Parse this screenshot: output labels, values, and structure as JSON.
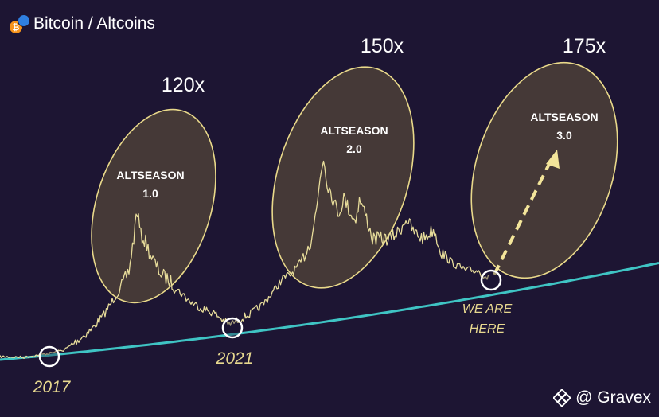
{
  "header": {
    "title": "Bitcoin / Altcoins"
  },
  "watermark": {
    "text": "@ Gravex"
  },
  "chart_data": {
    "type": "line",
    "colors": {
      "background": "#1d1533",
      "price_line": "#e7dc9a",
      "trend_line": "#3fc4c4",
      "ellipse_fill": "#4a3d37",
      "ellipse_stroke": "#e9d98a",
      "cycle_label": "#e7d88f",
      "ellipse_text": "#ffffff",
      "multiplier_text": "#ffffff",
      "arrow": "#f3e59a"
    },
    "altseasons": [
      {
        "multiplier": "120x",
        "label_line1": "ALTSEASON",
        "label_line2": "1.0"
      },
      {
        "multiplier": "150x",
        "label_line1": "ALTSEASON",
        "label_line2": "2.0"
      },
      {
        "multiplier": "175x",
        "label_line1": "ALTSEASON",
        "label_line2": "3.0"
      }
    ],
    "cycle_markers": [
      {
        "label": "2017"
      },
      {
        "label": "2021"
      },
      {
        "label": "WE ARE",
        "label_line2": "HERE"
      }
    ],
    "projection": "dashed arrow up from current point into ALTSEASON 3.0",
    "grid": false
  }
}
